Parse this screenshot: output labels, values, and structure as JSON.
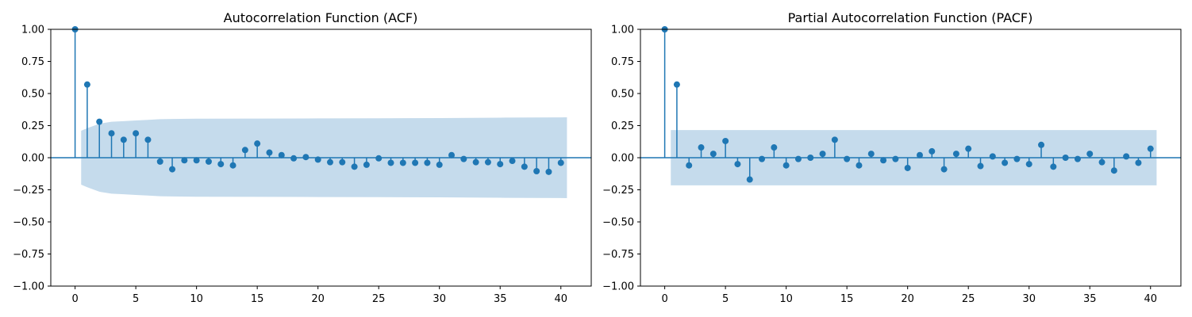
{
  "figure": {
    "colors": {
      "marker": "#1f77b4",
      "confidence_band": "#c5dbec",
      "axis": "#000000"
    }
  },
  "chart_data": [
    {
      "type": "stem",
      "title": "Autocorrelation Function (ACF)",
      "xlabel": "",
      "ylabel": "",
      "xlim": [
        -2,
        42.5
      ],
      "ylim": [
        -1.0,
        1.0
      ],
      "xticks": [
        0,
        5,
        10,
        15,
        20,
        25,
        30,
        35,
        40
      ],
      "yticks": [
        -1.0,
        -0.75,
        -0.5,
        -0.25,
        0.0,
        0.25,
        0.5,
        0.75,
        1.0
      ],
      "ytick_labels": [
        "−1.00",
        "−0.75",
        "−0.50",
        "−0.25",
        "0.00",
        "0.25",
        "0.50",
        "0.75",
        "1.00"
      ],
      "grid": false,
      "lags": [
        0,
        1,
        2,
        3,
        4,
        5,
        6,
        7,
        8,
        9,
        10,
        11,
        12,
        13,
        14,
        15,
        16,
        17,
        18,
        19,
        20,
        21,
        22,
        23,
        24,
        25,
        26,
        27,
        28,
        29,
        30,
        31,
        32,
        33,
        34,
        35,
        36,
        37,
        38,
        39,
        40
      ],
      "values": [
        1.0,
        0.57,
        0.28,
        0.19,
        0.14,
        0.19,
        0.14,
        -0.03,
        -0.09,
        -0.02,
        -0.02,
        -0.03,
        -0.05,
        -0.06,
        0.06,
        0.11,
        0.04,
        0.02,
        -0.005,
        0.005,
        -0.015,
        -0.035,
        -0.035,
        -0.07,
        -0.055,
        -0.005,
        -0.04,
        -0.04,
        -0.04,
        -0.04,
        -0.055,
        0.02,
        -0.01,
        -0.035,
        -0.035,
        -0.05,
        -0.025,
        -0.07,
        -0.105,
        -0.11,
        -0.04
      ],
      "confidence_band": {
        "lags": [
          0.5,
          1,
          2,
          3,
          4,
          5,
          6,
          7,
          8,
          10,
          15,
          20,
          25,
          30,
          35,
          40,
          40.5
        ],
        "upper": [
          0.21,
          0.23,
          0.265,
          0.28,
          0.285,
          0.29,
          0.295,
          0.3,
          0.302,
          0.304,
          0.305,
          0.306,
          0.307,
          0.309,
          0.312,
          0.314,
          0.315
        ]
      }
    },
    {
      "type": "stem",
      "title": "Partial Autocorrelation Function (PACF)",
      "xlabel": "",
      "ylabel": "",
      "xlim": [
        -2,
        42.5
      ],
      "ylim": [
        -1.0,
        1.0
      ],
      "xticks": [
        0,
        5,
        10,
        15,
        20,
        25,
        30,
        35,
        40
      ],
      "yticks": [
        -1.0,
        -0.75,
        -0.5,
        -0.25,
        0.0,
        0.25,
        0.5,
        0.75,
        1.0
      ],
      "ytick_labels": [
        "−1.00",
        "−0.75",
        "−0.50",
        "−0.25",
        "0.00",
        "0.25",
        "0.50",
        "0.75",
        "1.00"
      ],
      "grid": false,
      "lags": [
        0,
        1,
        2,
        3,
        4,
        5,
        6,
        7,
        8,
        9,
        10,
        11,
        12,
        13,
        14,
        15,
        16,
        17,
        18,
        19,
        20,
        21,
        22,
        23,
        24,
        25,
        26,
        27,
        28,
        29,
        30,
        31,
        32,
        33,
        34,
        35,
        36,
        37,
        38,
        39,
        40
      ],
      "values": [
        1.0,
        0.57,
        -0.06,
        0.08,
        0.03,
        0.13,
        -0.05,
        -0.17,
        -0.01,
        0.08,
        -0.06,
        -0.01,
        0.0,
        0.03,
        0.14,
        -0.01,
        -0.06,
        0.03,
        -0.02,
        -0.01,
        -0.08,
        0.02,
        0.05,
        -0.09,
        0.03,
        0.07,
        -0.065,
        0.01,
        -0.04,
        -0.01,
        -0.05,
        0.1,
        -0.07,
        0.0,
        -0.01,
        0.03,
        -0.035,
        -0.1,
        0.01,
        -0.04,
        0.07
      ],
      "confidence_band": {
        "lags": [
          0.5,
          40.5
        ],
        "upper": [
          0.215,
          0.215
        ]
      }
    }
  ]
}
